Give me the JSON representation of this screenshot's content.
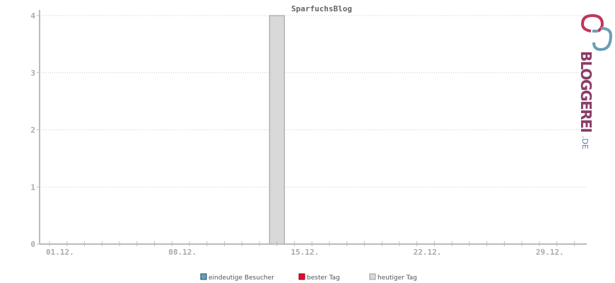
{
  "chart_data": {
    "type": "bar",
    "title": "SparfuchsBlog",
    "x_tick_labels": [
      "01.12.",
      "08.12.",
      "15.12.",
      "22.12.",
      "29.12."
    ],
    "ylim": [
      0,
      4
    ],
    "y_ticks": [
      0,
      1,
      2,
      3,
      4
    ],
    "grid": true,
    "legend_placement": "bottom",
    "series": [
      {
        "name": "eindeutige Besucher",
        "color": "#6a9fb5",
        "points": []
      },
      {
        "name": "bester Tag",
        "color": "#e8003d",
        "points": []
      },
      {
        "name": "heutiger Tag",
        "color": "#d9d9d9",
        "points": [
          {
            "x": "14.12.",
            "y": 4
          }
        ]
      }
    ]
  },
  "logo": {
    "text": "BLOGGEREI",
    "suffix": ".DE"
  }
}
